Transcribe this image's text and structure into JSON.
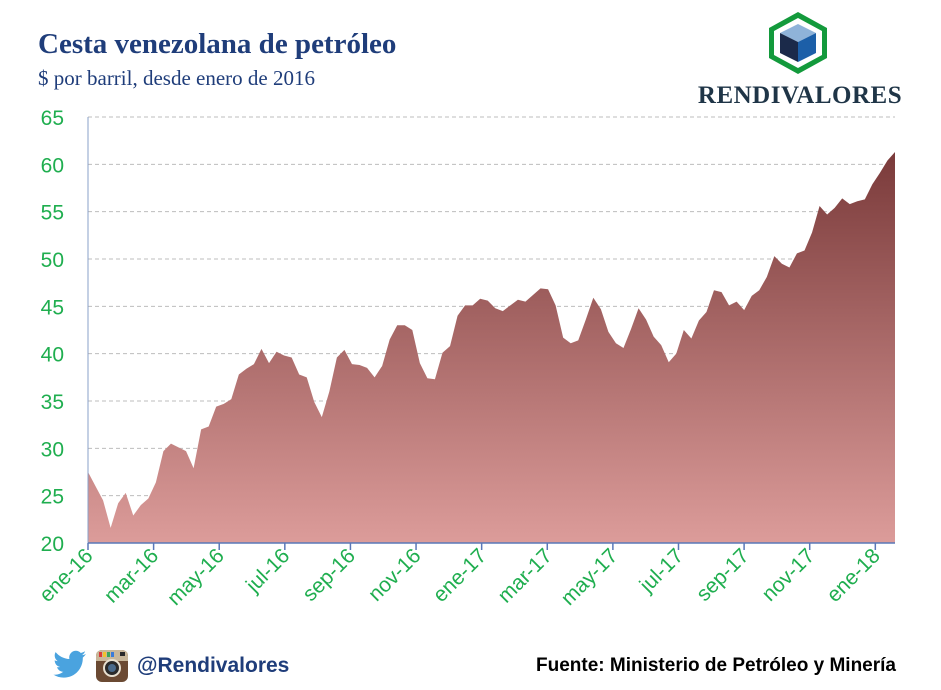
{
  "header": {
    "title": "Cesta venezolana de petróleo",
    "subtitle": "$ por barril, desde enero de 2016",
    "brand": "RENDIVALORES"
  },
  "footer": {
    "handle": "@Rendivalores",
    "source": "Fuente: Ministerio de Petróleo y Minería"
  },
  "icons": [
    "cube-logo-icon",
    "twitter-icon",
    "instagram-icon"
  ],
  "colors": {
    "title": "#1f3d7a",
    "axis_text": "#1fae4f",
    "area_top": "#7a3a3a",
    "area_bottom": "#dc9c9a",
    "logo_green": "#139a3c",
    "logo_blue": "#1c5fa8"
  },
  "chart_data": {
    "type": "area",
    "title": "Cesta venezolana de petróleo",
    "subtitle": "$ por barril, desde enero de 2016",
    "ylim": [
      20,
      65
    ],
    "yticks": [
      20,
      25,
      30,
      35,
      40,
      45,
      50,
      55,
      60,
      65
    ],
    "grid": "horizontal-dashed",
    "xtick_labels": [
      "ene-16",
      "mar-16",
      "may-16",
      "jul-16",
      "sep-16",
      "nov-16",
      "ene-17",
      "mar-17",
      "may-17",
      "jul-17",
      "sep-17",
      "nov-17",
      "ene-18"
    ],
    "series": [
      {
        "values": [
          27.5,
          26.0,
          24.5,
          21.6,
          24.2,
          25.3,
          22.9,
          24.0,
          24.7,
          26.4,
          29.7,
          30.5,
          30.1,
          29.7,
          27.9,
          32.0,
          32.3,
          34.4,
          34.7,
          35.2,
          37.8,
          38.4,
          38.9,
          40.5,
          39.0,
          40.2,
          39.8,
          39.6,
          37.8,
          37.5,
          34.9,
          33.3,
          36.0,
          39.6,
          40.4,
          38.9,
          38.8,
          38.5,
          37.5,
          38.7,
          41.5,
          43.0,
          43.0,
          42.5,
          39.0,
          37.4,
          37.3,
          40.1,
          40.8,
          44.0,
          45.1,
          45.1,
          45.8,
          45.6,
          44.8,
          44.5,
          45.1,
          45.7,
          45.5,
          46.2,
          46.9,
          46.8,
          45.1,
          41.7,
          41.1,
          41.4,
          43.6,
          45.9,
          44.7,
          42.3,
          41.1,
          40.6,
          42.6,
          44.8,
          43.6,
          41.8,
          40.9,
          39.1,
          40.0,
          42.5,
          41.6,
          43.5,
          44.4,
          46.7,
          46.5,
          45.1,
          45.5,
          44.6,
          46.1,
          46.7,
          48.1,
          50.3,
          49.5,
          49.1,
          50.6,
          50.9,
          52.8,
          55.6,
          54.7,
          55.4,
          56.4,
          55.8,
          56.1,
          56.3,
          57.9,
          59.1,
          60.4,
          61.3
        ]
      }
    ]
  }
}
